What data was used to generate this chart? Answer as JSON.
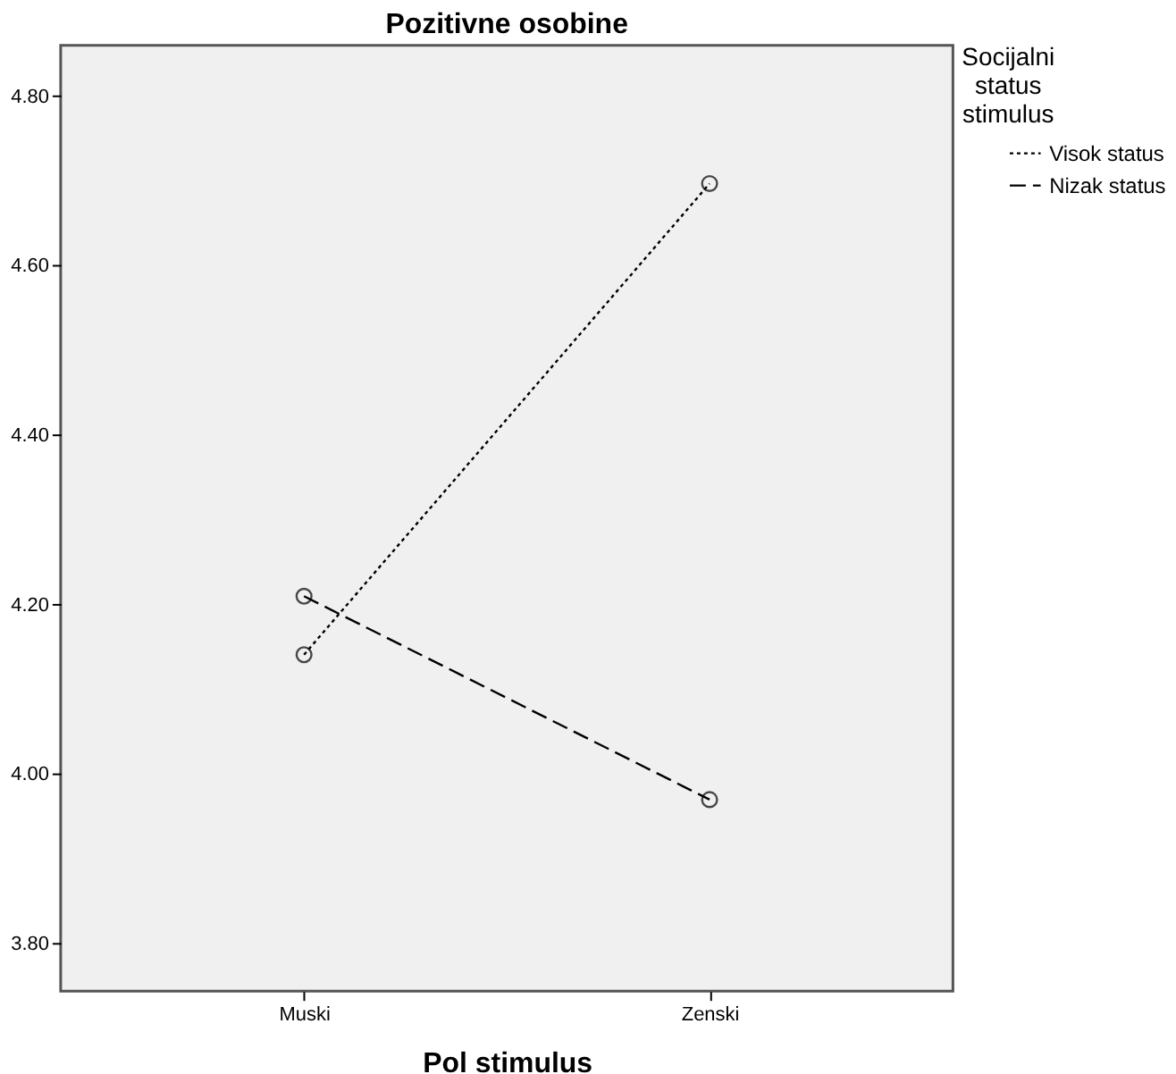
{
  "chart_data": {
    "type": "line",
    "title": "Pozitivne osobine",
    "xlabel": "Pol stimulus",
    "legend_title": "Socijalni status stimulus",
    "categories": [
      "Muski",
      "Zenski"
    ],
    "series": [
      {
        "name": "Visok status",
        "color": "#000000",
        "line_style": "dotted",
        "values": [
          4.141,
          4.697
        ]
      },
      {
        "name": "Nizak status",
        "color": "#000000",
        "line_style": "dashed",
        "values": [
          4.21,
          3.97
        ]
      }
    ],
    "ylim": [
      3.744,
      4.86
    ],
    "yticks": [
      {
        "value": 3.8,
        "label": "3.80"
      },
      {
        "value": 4.0,
        "label": "4.00"
      },
      {
        "value": 4.2,
        "label": "4.20"
      },
      {
        "value": 4.4,
        "label": "4.40"
      },
      {
        "value": 4.6,
        "label": "4.60"
      },
      {
        "value": 4.8,
        "label": "4.80"
      }
    ],
    "marker": "circle",
    "legend": "top right",
    "grid": false
  }
}
